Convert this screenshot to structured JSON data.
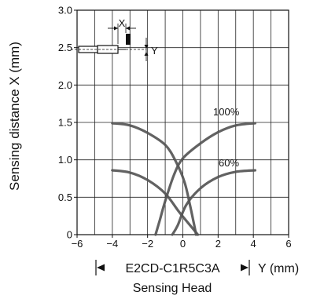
{
  "chart_data": {
    "type": "line",
    "ylabel": "Sensing distance X (mm)",
    "xlabel": "Y (mm)",
    "model_label": "E2CD-C1R5C3A",
    "caption": "Sensing Head",
    "xlim": [
      -6,
      6
    ],
    "ylim": [
      0,
      3.0
    ],
    "x_ticks": [
      "−6",
      "−4",
      "−2",
      "0",
      "2",
      "4",
      "6"
    ],
    "x_tick_values": [
      -6,
      -4,
      -2,
      0,
      2,
      4,
      6
    ],
    "y_ticks": [
      "0",
      "0.5",
      "1.0",
      "1.5",
      "2.0",
      "2.5",
      "3.0"
    ],
    "y_tick_values": [
      0,
      0.5,
      1.0,
      1.5,
      2.0,
      2.5,
      3.0
    ],
    "grid": true,
    "inset": {
      "x_label": "X",
      "y_label": "Y"
    },
    "series": [
      {
        "name": "100%",
        "left": [
          [
            -4.0,
            1.49
          ],
          [
            -3.0,
            1.46
          ],
          [
            -2.0,
            1.36
          ],
          [
            -1.0,
            1.2
          ],
          [
            -0.4,
            0.98
          ],
          [
            0.1,
            0.7
          ],
          [
            0.4,
            0.4
          ],
          [
            0.6,
            0.18
          ],
          [
            0.75,
            0.0
          ]
        ],
        "right": [
          [
            -1.55,
            0.0
          ],
          [
            -1.3,
            0.2
          ],
          [
            -1.0,
            0.45
          ],
          [
            -0.5,
            0.8
          ],
          [
            0.0,
            1.02
          ],
          [
            1.0,
            1.22
          ],
          [
            2.0,
            1.37
          ],
          [
            3.0,
            1.46
          ],
          [
            4.1,
            1.49
          ]
        ]
      },
      {
        "name": "60%",
        "left": [
          [
            -4.0,
            0.86
          ],
          [
            -3.0,
            0.83
          ],
          [
            -2.0,
            0.73
          ],
          [
            -1.0,
            0.55
          ],
          [
            -0.2,
            0.3
          ],
          [
            0.5,
            0.1
          ],
          [
            0.85,
            0.0
          ]
        ],
        "right": [
          [
            -0.6,
            0.0
          ],
          [
            -0.3,
            0.12
          ],
          [
            0.2,
            0.4
          ],
          [
            1.0,
            0.62
          ],
          [
            2.0,
            0.77
          ],
          [
            3.0,
            0.84
          ],
          [
            4.1,
            0.86
          ]
        ]
      }
    ]
  }
}
